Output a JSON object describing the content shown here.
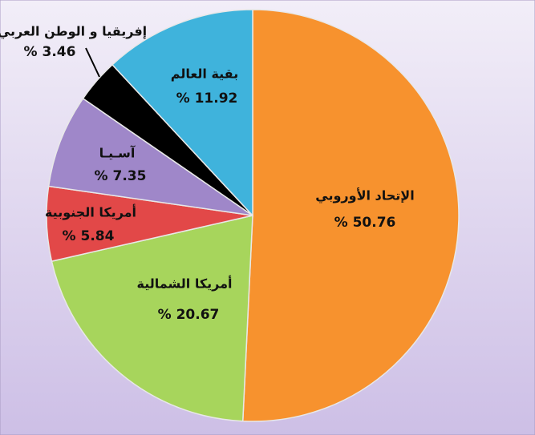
{
  "chart_data": {
    "type": "pie",
    "categories": [
      "الإتحاد الأوروبي",
      "أمريكا الشمالية",
      "أمريكا الجنوبية",
      "آسـيـا",
      "إفريقيا و الوطن العربي",
      "بقية العالم"
    ],
    "values": [
      50.76,
      20.67,
      5.84,
      7.35,
      3.46,
      11.92
    ],
    "value_labels": [
      "% 50.76",
      "% 20.67",
      "% 5.84",
      "% 7.35",
      "% 3.46",
      "% 11.92"
    ],
    "colors": [
      "#f7922e",
      "#a7d55c",
      "#e24848",
      "#9f87c9",
      "#000000",
      "#3fb3dc"
    ]
  }
}
